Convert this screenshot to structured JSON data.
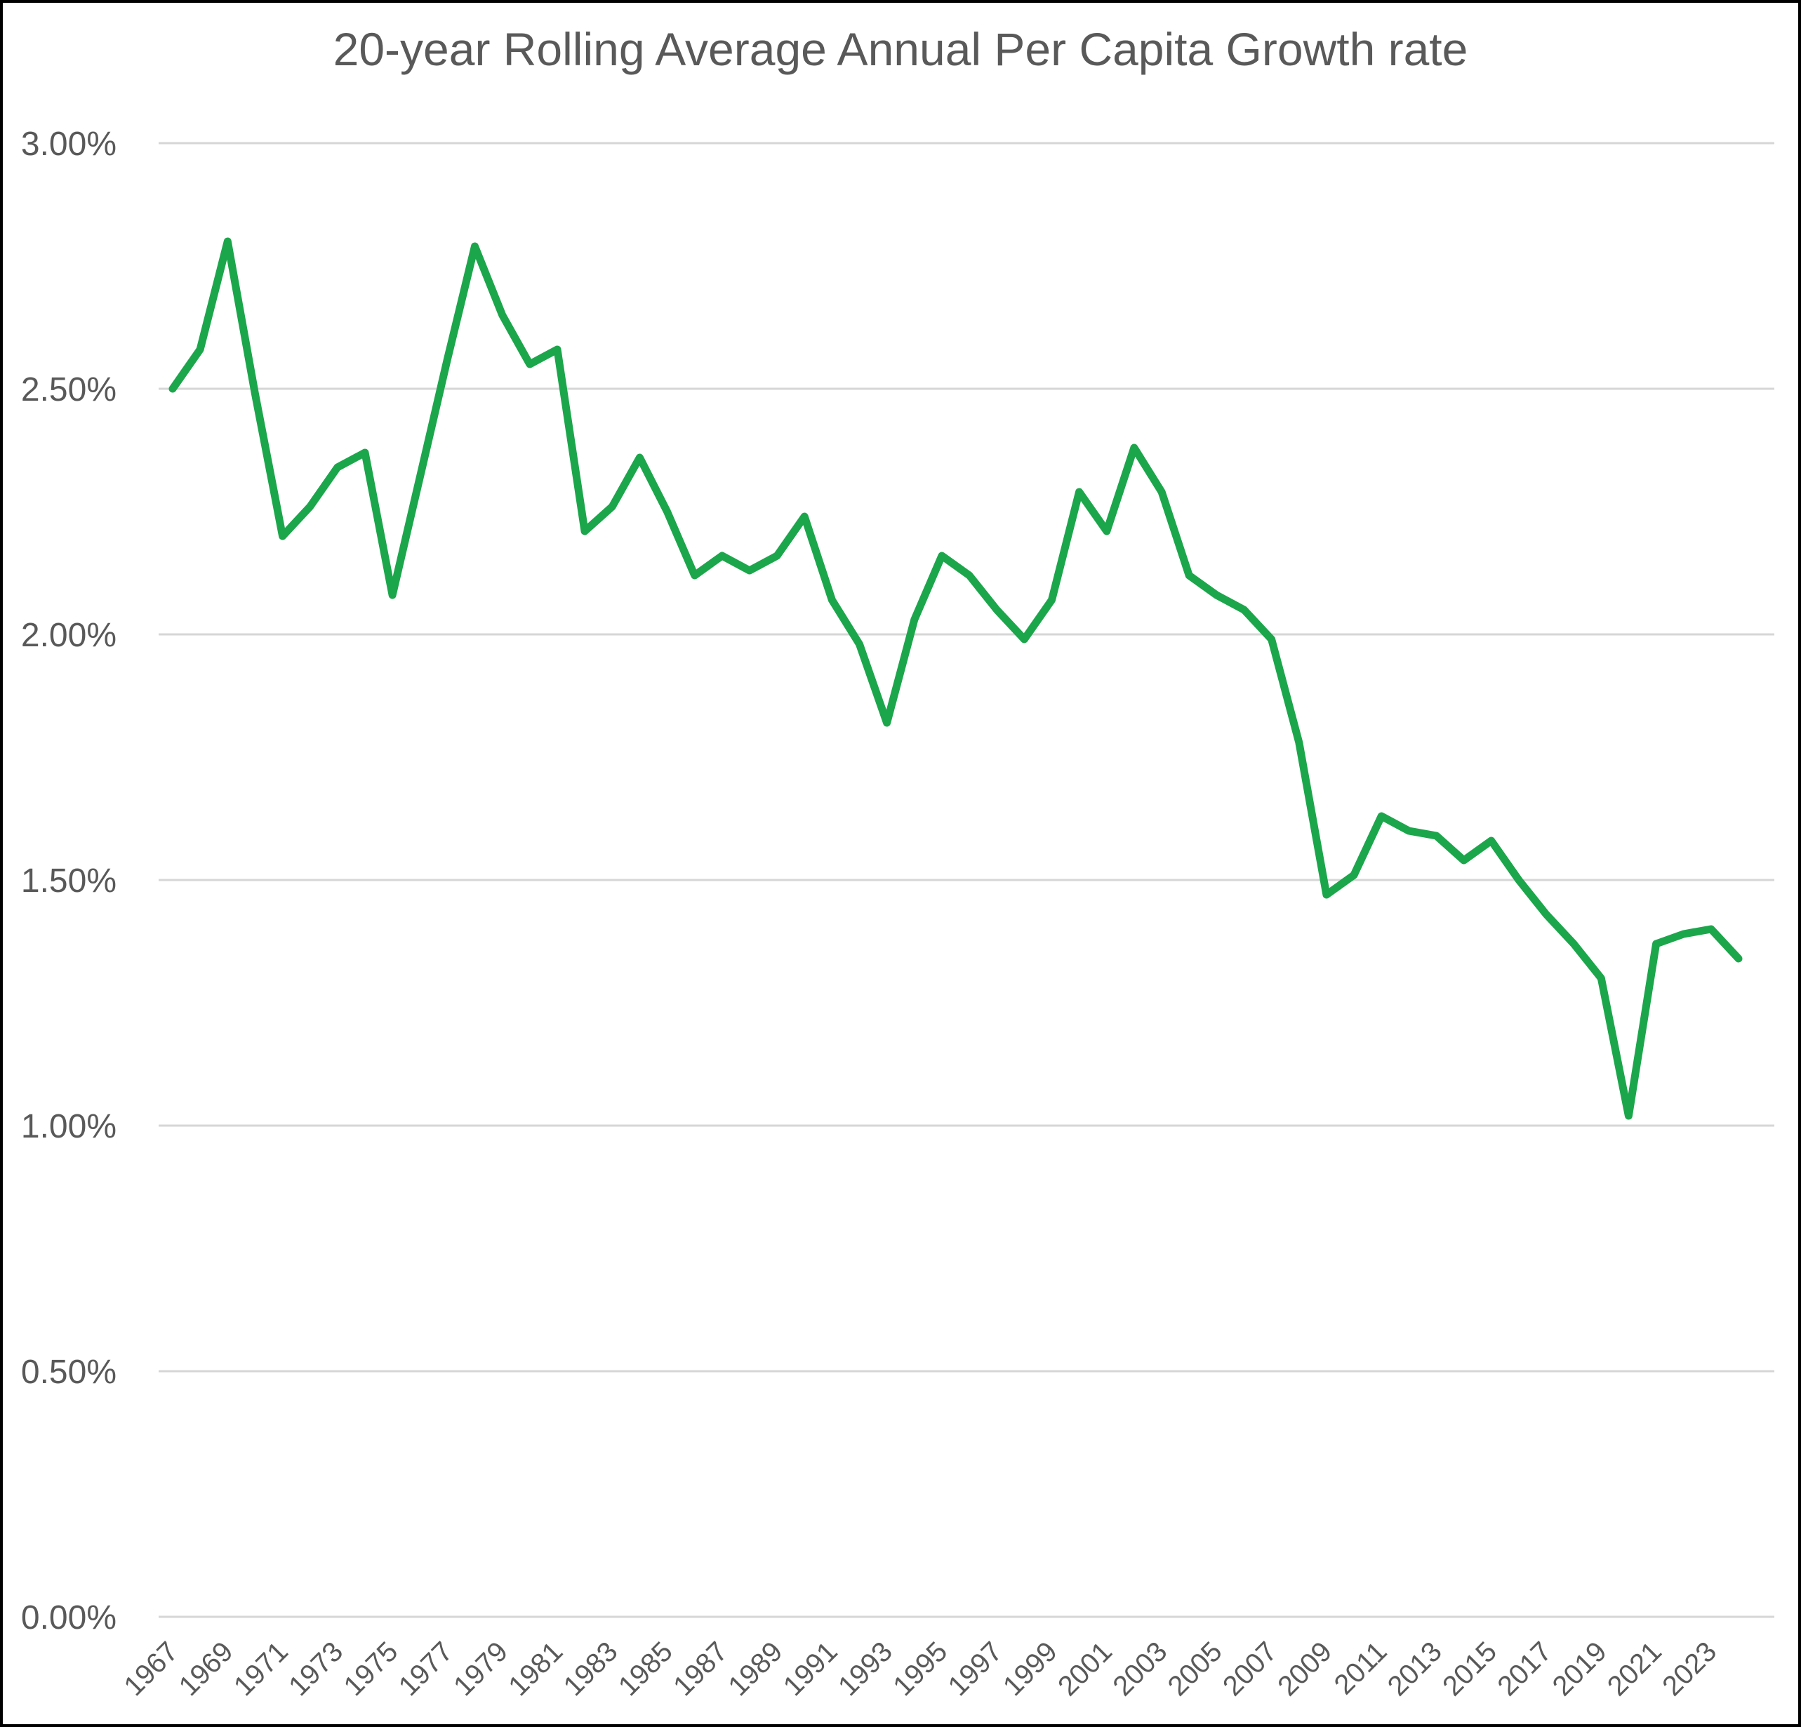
{
  "page": {
    "background_color": "#FFFFFF",
    "border_color": "#000000"
  },
  "chart_data": {
    "type": "line",
    "title": "20-year Rolling Average Annual Per Capita Growth rate",
    "xlabel": "",
    "ylabel": "",
    "legend": "none",
    "grid": "horizontal",
    "ylim_percent": [
      0.0,
      3.0
    ],
    "y_tick_values": [
      0.0,
      0.5,
      1.0,
      1.5,
      2.0,
      2.5,
      3.0
    ],
    "y_tick_labels": [
      "0.00%",
      "0.50%",
      "1.00%",
      "1.50%",
      "2.00%",
      "2.50%",
      "3.00%"
    ],
    "x_tick_labels": [
      "1967",
      "1969",
      "1971",
      "1973",
      "1975",
      "1977",
      "1979",
      "1981",
      "1983",
      "1985",
      "1987",
      "1989",
      "1991",
      "1993",
      "1995",
      "1997",
      "1999",
      "2001",
      "2003",
      "2005",
      "2007",
      "2009",
      "2011",
      "2013",
      "2015",
      "2017",
      "2019",
      "2021",
      "2023"
    ],
    "line_color": "#1CA64B",
    "grid_color": "#D6D6D6",
    "text_color": "#595959",
    "series": [
      {
        "name": "20-year rolling average annual per capita growth rate",
        "x": [
          1967,
          1968,
          1969,
          1970,
          1971,
          1972,
          1973,
          1974,
          1975,
          1976,
          1977,
          1978,
          1979,
          1980,
          1981,
          1982,
          1983,
          1984,
          1985,
          1986,
          1987,
          1988,
          1989,
          1990,
          1991,
          1992,
          1993,
          1994,
          1995,
          1996,
          1997,
          1998,
          1999,
          2000,
          2001,
          2002,
          2003,
          2004,
          2005,
          2006,
          2007,
          2008,
          2009,
          2010,
          2011,
          2012,
          2013,
          2014,
          2015,
          2016,
          2017,
          2018,
          2019,
          2020,
          2021,
          2022,
          2023,
          2024
        ],
        "values_percent": [
          2.5,
          2.58,
          2.8,
          2.49,
          2.2,
          2.26,
          2.34,
          2.37,
          2.08,
          2.32,
          2.56,
          2.79,
          2.65,
          2.55,
          2.58,
          2.21,
          2.26,
          2.36,
          2.25,
          2.12,
          2.16,
          2.13,
          2.16,
          2.24,
          2.07,
          1.98,
          1.82,
          2.03,
          2.16,
          2.12,
          2.05,
          1.99,
          2.07,
          2.29,
          2.21,
          2.38,
          2.29,
          2.12,
          2.08,
          2.05,
          1.99,
          1.78,
          1.47,
          1.51,
          1.63,
          1.6,
          1.59,
          1.54,
          1.58,
          1.5,
          1.43,
          1.37,
          1.3,
          1.02,
          1.37,
          1.39,
          1.4,
          1.34
        ]
      }
    ]
  }
}
